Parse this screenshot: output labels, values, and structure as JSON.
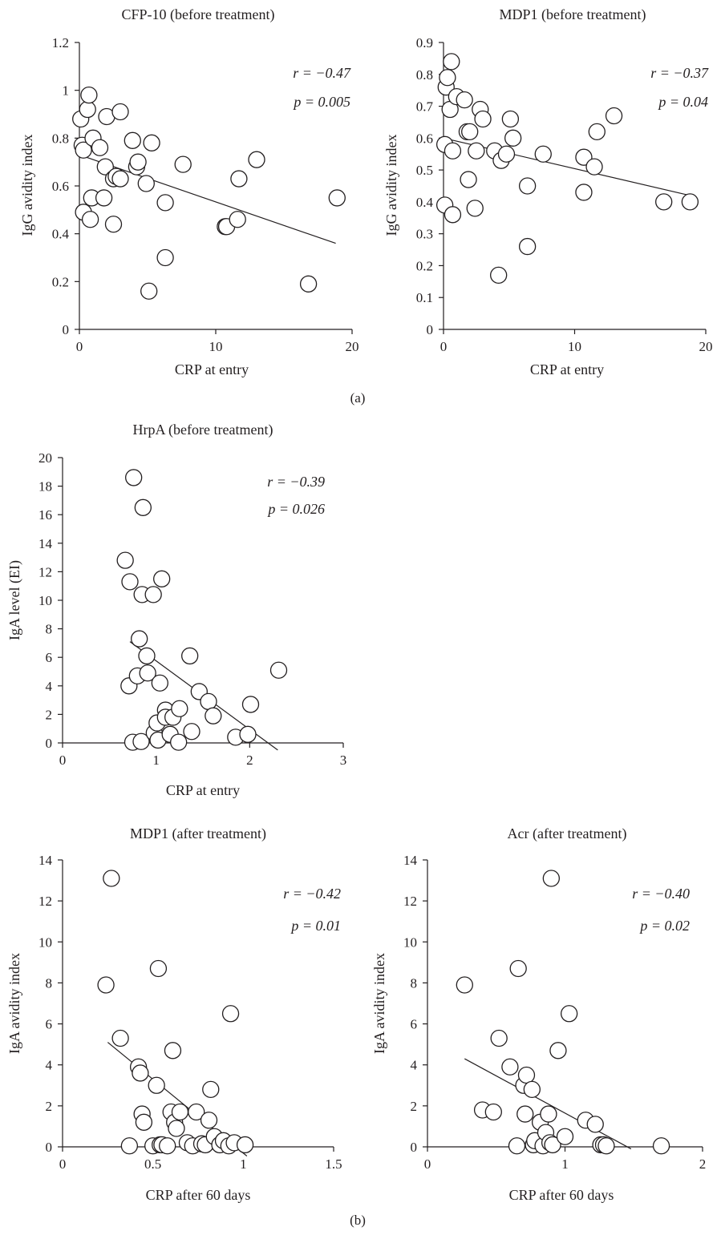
{
  "panel_labels": [
    "(a)",
    "(b)"
  ],
  "chart_data": [
    {
      "type": "scatter",
      "title": "CFP-10 (before treatment)",
      "xlabel": "CRP at entry",
      "ylabel": "IgG avidity index",
      "xlim": [
        0,
        20
      ],
      "ylim": [
        0,
        1.2
      ],
      "xticks": [
        0,
        10,
        20
      ],
      "xtick_labels": [
        "0",
        "10",
        "20"
      ],
      "yticks": [
        0,
        0.2,
        0.4,
        0.6,
        0.8,
        1,
        1.2
      ],
      "ytick_labels": [
        "0",
        "0.2",
        "0.4",
        "0.6",
        "0.8",
        "1",
        "1.2"
      ],
      "r_text": "r = −0.47",
      "p_text": "p = 0.005",
      "fit": [
        [
          0,
          0.73
        ],
        [
          18.8,
          0.36
        ]
      ],
      "points": [
        [
          0.1,
          0.88
        ],
        [
          0.2,
          0.77
        ],
        [
          0.3,
          0.75
        ],
        [
          0.3,
          0.49
        ],
        [
          0.6,
          0.92
        ],
        [
          0.7,
          0.98
        ],
        [
          0.8,
          0.46
        ],
        [
          0.9,
          0.55
        ],
        [
          1.0,
          0.8
        ],
        [
          1.5,
          0.76
        ],
        [
          1.8,
          0.55
        ],
        [
          1.9,
          0.68
        ],
        [
          2.0,
          0.89
        ],
        [
          2.5,
          0.63
        ],
        [
          2.5,
          0.44
        ],
        [
          2.7,
          0.64
        ],
        [
          3.0,
          0.63
        ],
        [
          3.0,
          0.91
        ],
        [
          3.9,
          0.79
        ],
        [
          4.2,
          0.68
        ],
        [
          4.3,
          0.7
        ],
        [
          4.9,
          0.61
        ],
        [
          5.1,
          0.16
        ],
        [
          5.3,
          0.78
        ],
        [
          6.3,
          0.53
        ],
        [
          6.3,
          0.3
        ],
        [
          7.6,
          0.69
        ],
        [
          10.7,
          0.43
        ],
        [
          10.8,
          0.43
        ],
        [
          11.6,
          0.46
        ],
        [
          11.7,
          0.63
        ],
        [
          13.0,
          0.71
        ],
        [
          16.8,
          0.19
        ],
        [
          18.9,
          0.55
        ]
      ]
    },
    {
      "type": "scatter",
      "title": "MDP1 (before treatment)",
      "xlabel": "CRP at entry",
      "ylabel": "IgG avidity index",
      "xlim": [
        0,
        20
      ],
      "ylim": [
        0,
        0.9
      ],
      "xticks": [
        0,
        10,
        20
      ],
      "xtick_labels": [
        "0",
        "10",
        "20"
      ],
      "yticks": [
        0,
        0.1,
        0.2,
        0.3,
        0.4,
        0.5,
        0.6,
        0.7,
        0.8,
        0.9
      ],
      "ytick_labels": [
        "0",
        "0.1",
        "0.2",
        "0.3",
        "0.4",
        "0.5",
        "0.6",
        "0.7",
        "0.8",
        "0.9"
      ],
      "r_text": "r = −0.37",
      "p_text": "p = 0.04",
      "fit": [
        [
          0,
          0.6
        ],
        [
          18.8,
          0.42
        ]
      ],
      "points": [
        [
          0.1,
          0.58
        ],
        [
          0.1,
          0.39
        ],
        [
          0.2,
          0.76
        ],
        [
          0.3,
          0.79
        ],
        [
          0.5,
          0.69
        ],
        [
          0.6,
          0.84
        ],
        [
          0.7,
          0.56
        ],
        [
          0.7,
          0.36
        ],
        [
          1.0,
          0.73
        ],
        [
          1.6,
          0.72
        ],
        [
          1.8,
          0.62
        ],
        [
          1.9,
          0.47
        ],
        [
          2.0,
          0.62
        ],
        [
          2.4,
          0.38
        ],
        [
          2.5,
          0.56
        ],
        [
          2.8,
          0.69
        ],
        [
          3.0,
          0.66
        ],
        [
          3.9,
          0.56
        ],
        [
          4.2,
          0.17
        ],
        [
          4.4,
          0.53
        ],
        [
          4.8,
          0.55
        ],
        [
          5.1,
          0.66
        ],
        [
          5.3,
          0.6
        ],
        [
          6.4,
          0.45
        ],
        [
          6.4,
          0.26
        ],
        [
          7.6,
          0.55
        ],
        [
          10.7,
          0.54
        ],
        [
          10.7,
          0.43
        ],
        [
          11.5,
          0.51
        ],
        [
          11.7,
          0.62
        ],
        [
          13.0,
          0.67
        ],
        [
          16.8,
          0.4
        ],
        [
          18.8,
          0.4
        ]
      ]
    },
    {
      "type": "scatter",
      "title": "HrpA (before treatment)",
      "xlabel": "CRP at entry",
      "ylabel": "IgA level (EI)",
      "xlim": [
        0,
        3
      ],
      "ylim": [
        0,
        20
      ],
      "xticks": [
        0,
        1,
        2,
        3
      ],
      "xtick_labels": [
        "0",
        "1",
        "2",
        "3"
      ],
      "yticks": [
        0,
        2,
        4,
        6,
        8,
        10,
        12,
        14,
        16,
        18,
        20
      ],
      "ytick_labels": [
        "0",
        "2",
        "4",
        "6",
        "8",
        "10",
        "12",
        "14",
        "16",
        "18",
        "20"
      ],
      "r_text": "r = −0.39",
      "p_text": "p = 0.026",
      "fit": [
        [
          0.72,
          7.1
        ],
        [
          2.3,
          -0.5
        ]
      ],
      "points": [
        [
          0.67,
          12.8
        ],
        [
          0.71,
          4.0
        ],
        [
          0.72,
          11.3
        ],
        [
          0.75,
          0.05
        ],
        [
          0.76,
          18.6
        ],
        [
          0.8,
          4.7
        ],
        [
          0.82,
          7.3
        ],
        [
          0.84,
          0.1
        ],
        [
          0.85,
          10.4
        ],
        [
          0.86,
          16.5
        ],
        [
          0.9,
          6.1
        ],
        [
          0.91,
          4.9
        ],
        [
          0.97,
          10.4
        ],
        [
          0.98,
          0.7
        ],
        [
          1.01,
          1.4
        ],
        [
          1.02,
          0.2
        ],
        [
          1.04,
          4.2
        ],
        [
          1.06,
          11.5
        ],
        [
          1.1,
          2.3
        ],
        [
          1.1,
          1.8
        ],
        [
          1.15,
          0.6
        ],
        [
          1.18,
          1.8
        ],
        [
          1.24,
          0.05
        ],
        [
          1.25,
          2.4
        ],
        [
          1.36,
          6.1
        ],
        [
          1.38,
          0.8
        ],
        [
          1.46,
          3.6
        ],
        [
          1.56,
          2.9
        ],
        [
          1.61,
          1.9
        ],
        [
          1.85,
          0.4
        ],
        [
          1.98,
          0.6
        ],
        [
          2.01,
          2.7
        ],
        [
          2.31,
          5.1
        ]
      ]
    },
    {
      "type": "scatter",
      "title": "MDP1 (after treatment)",
      "xlabel": "CRP after 60 days",
      "ylabel": "IgA avidity index",
      "xlim": [
        0,
        1.5
      ],
      "ylim": [
        0,
        14
      ],
      "xticks": [
        0,
        0.5,
        1,
        1.5
      ],
      "xtick_labels": [
        "0",
        "0.5",
        "1",
        "1.5"
      ],
      "yticks": [
        0,
        2,
        4,
        6,
        8,
        10,
        12,
        14
      ],
      "ytick_labels": [
        "0",
        "2",
        "4",
        "6",
        "8",
        "10",
        "12",
        "14"
      ],
      "r_text": "r = −0.42",
      "p_text": "p = 0.01",
      "fit": [
        [
          0.25,
          5.1
        ],
        [
          1.02,
          -0.45
        ]
      ],
      "points": [
        [
          0.24,
          7.9
        ],
        [
          0.27,
          13.1
        ],
        [
          0.32,
          5.3
        ],
        [
          0.37,
          0.05
        ],
        [
          0.42,
          3.9
        ],
        [
          0.43,
          3.6
        ],
        [
          0.44,
          1.6
        ],
        [
          0.45,
          1.2
        ],
        [
          0.5,
          0.05
        ],
        [
          0.52,
          3.0
        ],
        [
          0.53,
          8.7
        ],
        [
          0.54,
          0.1
        ],
        [
          0.55,
          0.1
        ],
        [
          0.58,
          0.05
        ],
        [
          0.6,
          1.7
        ],
        [
          0.61,
          4.7
        ],
        [
          0.62,
          1.2
        ],
        [
          0.63,
          0.9
        ],
        [
          0.65,
          1.7
        ],
        [
          0.69,
          0.2
        ],
        [
          0.72,
          0.05
        ],
        [
          0.74,
          1.7
        ],
        [
          0.77,
          0.15
        ],
        [
          0.79,
          0.1
        ],
        [
          0.81,
          1.3
        ],
        [
          0.82,
          2.8
        ],
        [
          0.84,
          0.5
        ],
        [
          0.87,
          0.1
        ],
        [
          0.89,
          0.3
        ],
        [
          0.92,
          0.05
        ],
        [
          0.93,
          6.5
        ],
        [
          0.95,
          0.2
        ],
        [
          1.01,
          0.1
        ]
      ]
    },
    {
      "type": "scatter",
      "title": "Acr (after treatment)",
      "xlabel": "CRP after 60 days",
      "ylabel": "IgA avidity index",
      "xlim": [
        0,
        2
      ],
      "ylim": [
        0,
        14
      ],
      "xticks": [
        0,
        1,
        2
      ],
      "xtick_labels": [
        "0",
        "1",
        "2"
      ],
      "yticks": [
        0,
        2,
        4,
        6,
        8,
        10,
        12,
        14
      ],
      "ytick_labels": [
        "0",
        "2",
        "4",
        "6",
        "8",
        "10",
        "12",
        "14"
      ],
      "r_text": "r = −0.40",
      "p_text": "p = 0.02",
      "fit": [
        [
          0.27,
          4.3
        ],
        [
          1.48,
          -0.1
        ]
      ],
      "points": [
        [
          0.27,
          7.9
        ],
        [
          0.4,
          1.8
        ],
        [
          0.48,
          1.7
        ],
        [
          0.52,
          5.3
        ],
        [
          0.6,
          3.9
        ],
        [
          0.65,
          0.05
        ],
        [
          0.66,
          8.7
        ],
        [
          0.7,
          3.0
        ],
        [
          0.71,
          1.6
        ],
        [
          0.72,
          3.5
        ],
        [
          0.76,
          2.8
        ],
        [
          0.77,
          0.1
        ],
        [
          0.78,
          0.3
        ],
        [
          0.82,
          1.2
        ],
        [
          0.84,
          0.05
        ],
        [
          0.86,
          0.7
        ],
        [
          0.88,
          1.6
        ],
        [
          0.89,
          0.2
        ],
        [
          0.9,
          13.1
        ],
        [
          0.91,
          0.1
        ],
        [
          0.95,
          4.7
        ],
        [
          1.0,
          0.5
        ],
        [
          1.03,
          6.5
        ],
        [
          1.15,
          1.3
        ],
        [
          1.22,
          1.1
        ],
        [
          1.26,
          0.1
        ],
        [
          1.28,
          0.1
        ],
        [
          1.3,
          0.05
        ],
        [
          1.7,
          0.05
        ]
      ]
    }
  ]
}
